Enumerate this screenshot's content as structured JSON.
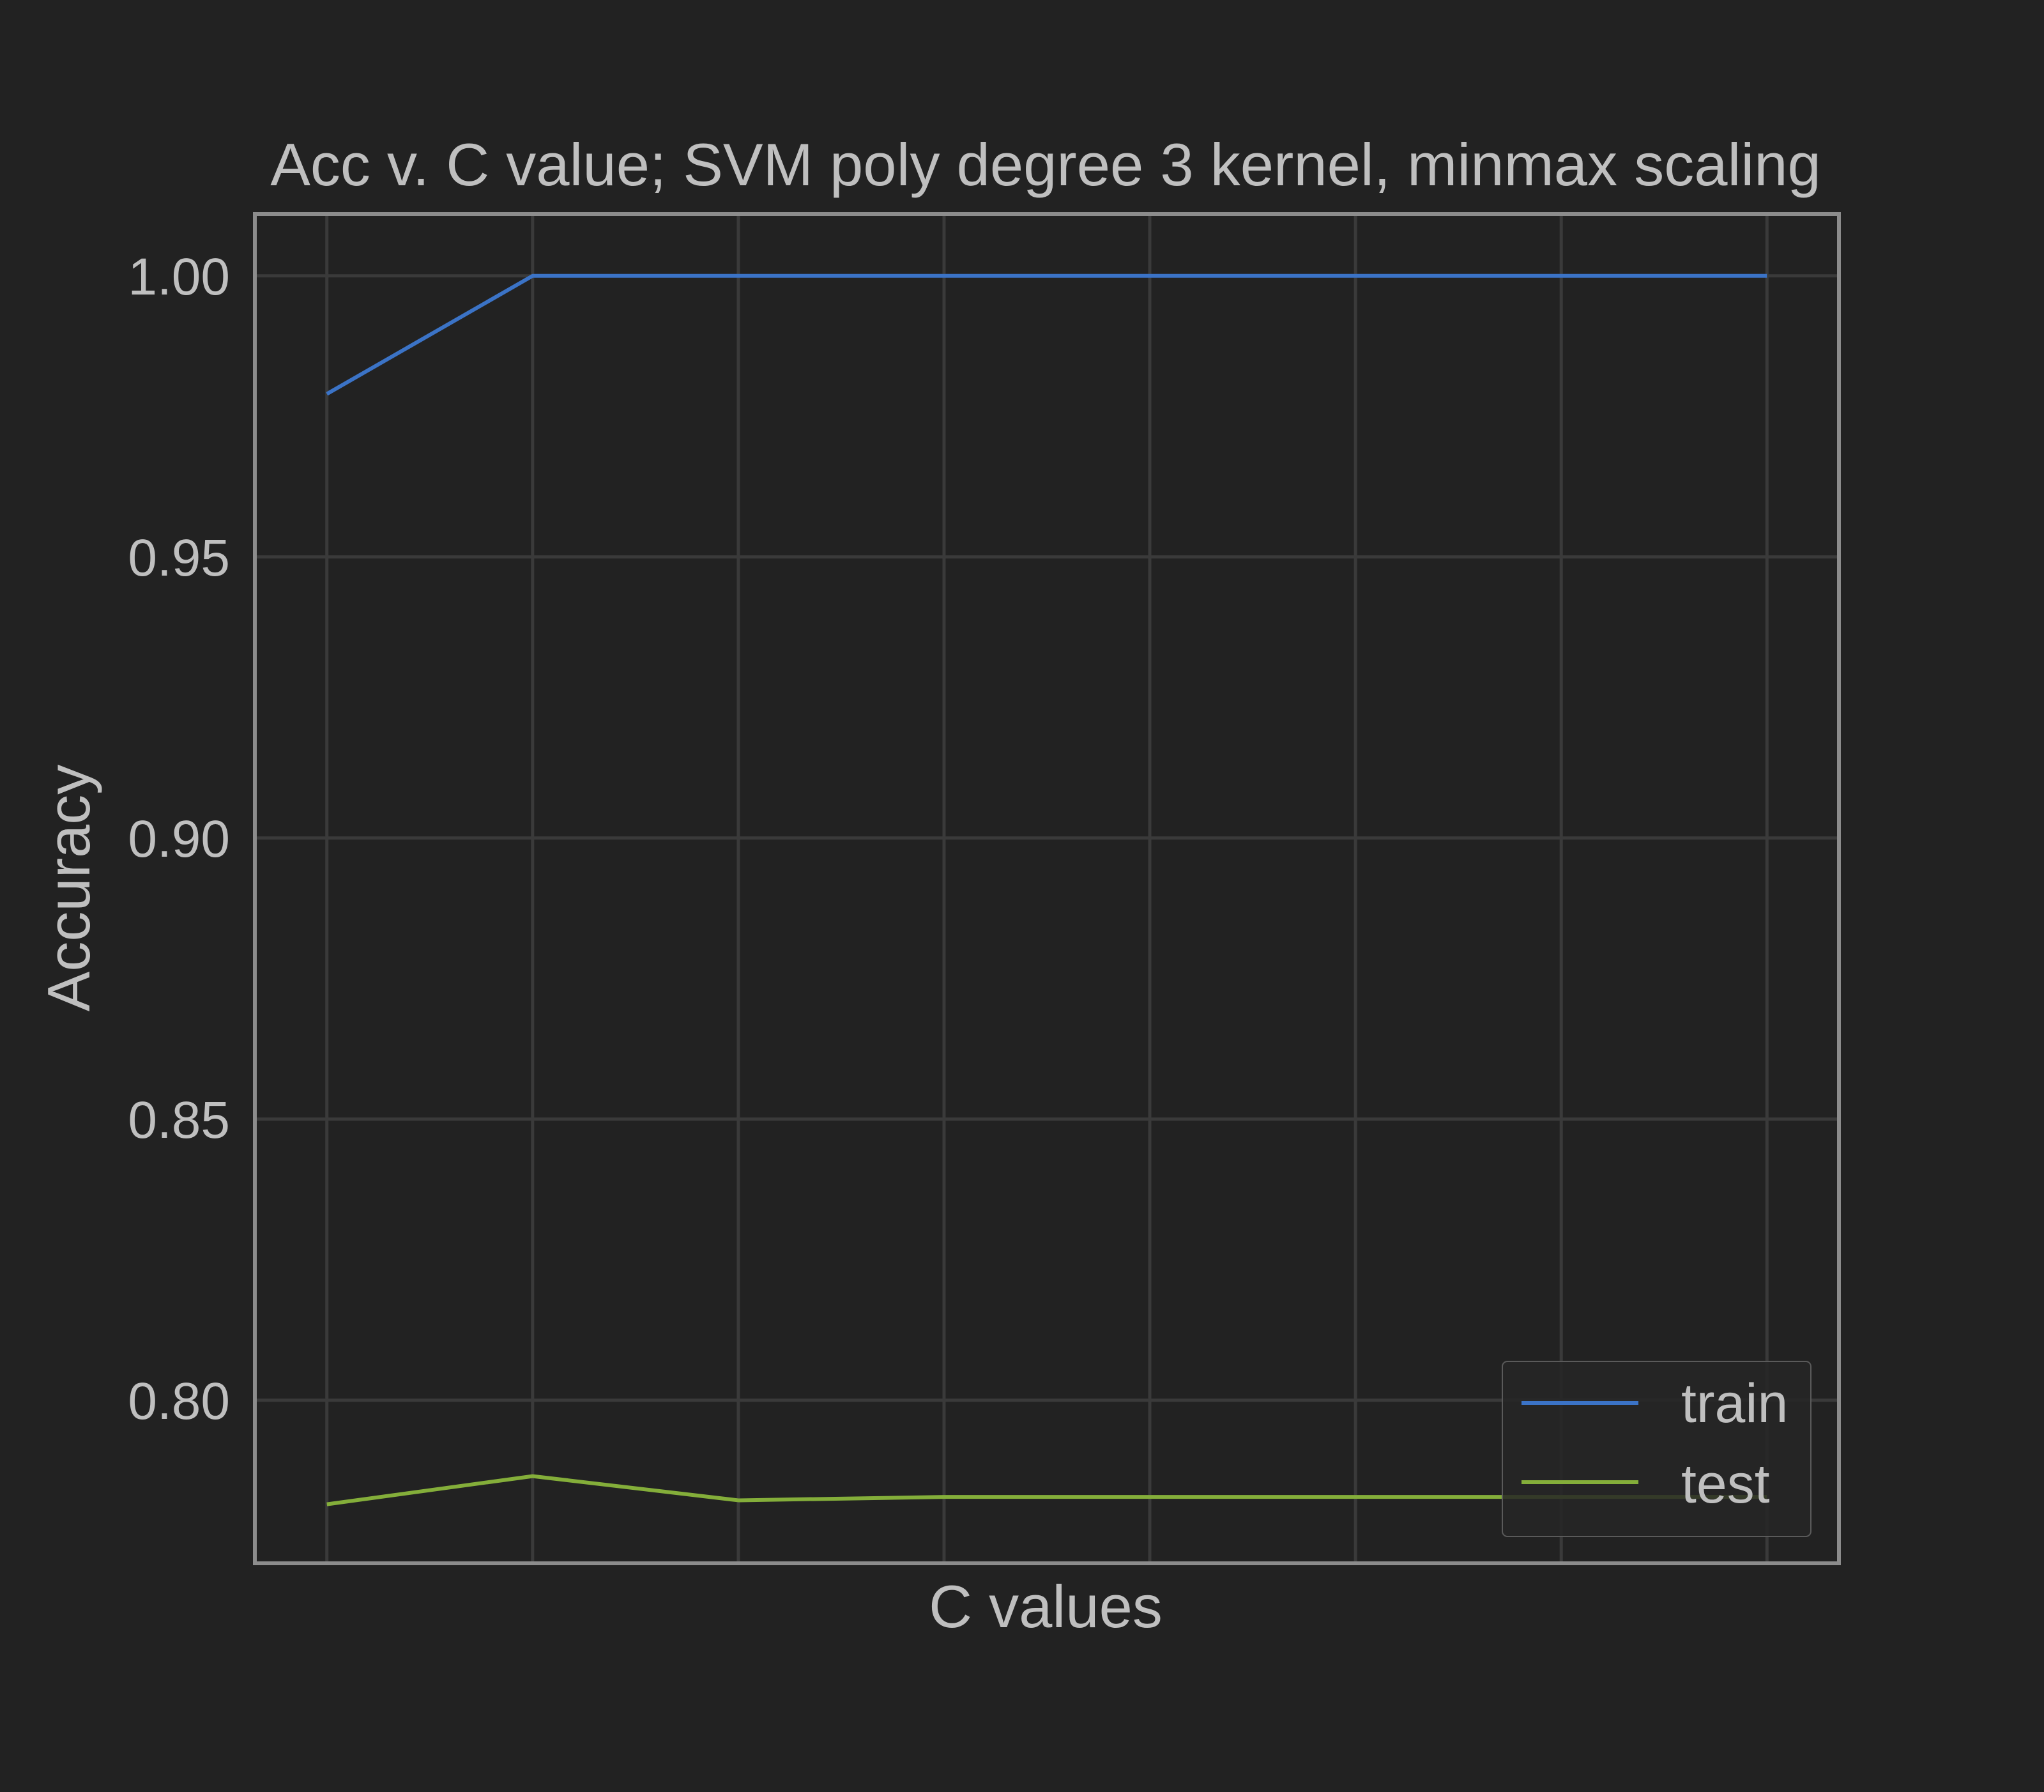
{
  "chart_data": {
    "type": "line",
    "title": "Acc v. C value; SVM poly degree 3 kernel,  minmax scaling",
    "xlabel": "C values",
    "ylabel": "Accuracy",
    "x": [
      0,
      1,
      2,
      3,
      4,
      5,
      6,
      7
    ],
    "xlim": [
      -0.35,
      7.35
    ],
    "ylim": [
      0.771,
      1.011
    ],
    "yticks": [
      0.8,
      0.85,
      0.9,
      0.95,
      1.0
    ],
    "ytick_labels": [
      "0.80",
      "0.85",
      "0.90",
      "0.95",
      "1.00"
    ],
    "grid": true,
    "legend_position": "lower-right",
    "series": [
      {
        "name": "train",
        "color": "#3b73c6",
        "values": [
          0.979,
          1.0,
          1.0,
          1.0,
          1.0,
          1.0,
          1.0,
          1.0
        ]
      },
      {
        "name": "test",
        "color": "#84ae3a",
        "values": [
          0.7815,
          0.7865,
          0.7822,
          0.7828,
          0.7828,
          0.7828,
          0.7828,
          0.7828
        ]
      }
    ]
  },
  "colors": {
    "background": "#222222",
    "grid": "#3a3a3a",
    "frame": "#8c8c8c",
    "text": "#bfbfbf"
  }
}
